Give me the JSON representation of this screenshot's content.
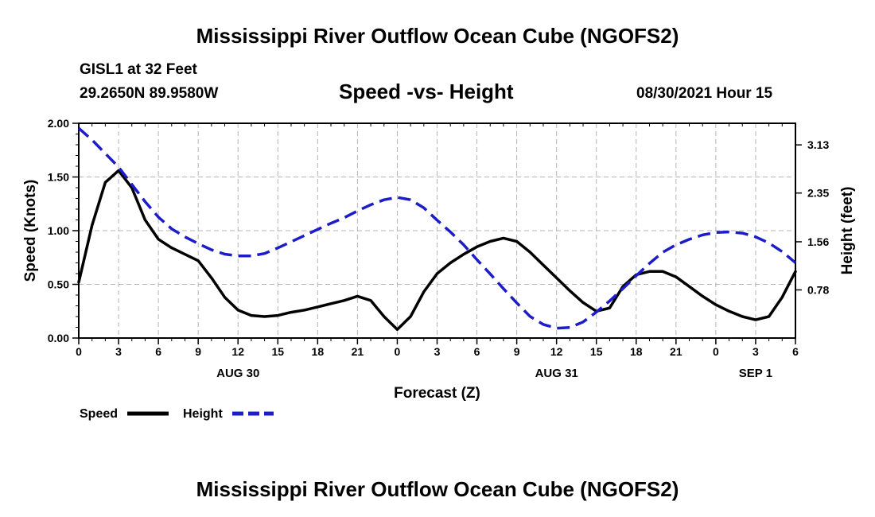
{
  "header": {
    "title": "Mississippi River Outflow Ocean Cube (NGOFS2)",
    "station": "GISL1 at 32 Feet",
    "coords": "29.2650N  89.9580W",
    "plot_title": "Speed -vs- Height",
    "timestamp": "08/30/2021 Hour 15"
  },
  "footer": {
    "title": "Mississippi River Outflow Ocean Cube (NGOFS2)"
  },
  "colors": {
    "speed": "#000000",
    "height": "#1c1cc8",
    "grid": "#b4b4b4"
  },
  "chart_data": {
    "type": "line",
    "title": "Speed -vs- Height",
    "xlabel": "Forecast (Z)",
    "ylabel": "Speed (Knots)",
    "y2label": "Height (feet)",
    "xlim": [
      0,
      54
    ],
    "ylim": [
      0,
      2.0
    ],
    "y2lim": [
      0,
      3.48
    ],
    "x_ticks": [
      0,
      3,
      6,
      9,
      12,
      15,
      18,
      21,
      24,
      27,
      30,
      33,
      36,
      39,
      42,
      45,
      48,
      51,
      54
    ],
    "x_tick_labels": [
      "0",
      "3",
      "6",
      "9",
      "12",
      "15",
      "18",
      "21",
      "0",
      "3",
      "6",
      "9",
      "12",
      "15",
      "18",
      "21",
      "0",
      "3",
      "6"
    ],
    "date_labels": [
      {
        "x": 12,
        "label": "AUG 30"
      },
      {
        "x": 36,
        "label": "AUG 31"
      },
      {
        "x": 51,
        "label": "SEP 1"
      }
    ],
    "y_ticks": [
      0,
      0.5,
      1.0,
      1.5,
      2.0
    ],
    "y_tick_labels": [
      "0.00",
      "0.50",
      "1.00",
      "1.50",
      "2.00"
    ],
    "y2_ticks": [
      0.78,
      1.56,
      2.35,
      3.13
    ],
    "y2_tick_labels": [
      "0.78",
      "1.56",
      "2.35",
      "3.13"
    ],
    "grid": true,
    "legend": [
      {
        "name": "Speed",
        "style": "solid"
      },
      {
        "name": "Height",
        "style": "dashed"
      }
    ],
    "series": [
      {
        "name": "Speed",
        "axis": "left",
        "x": [
          0,
          1,
          2,
          3,
          4,
          5,
          6,
          7,
          8,
          9,
          10,
          11,
          12,
          13,
          14,
          15,
          16,
          17,
          18,
          19,
          20,
          21,
          22,
          23,
          24,
          25,
          26,
          27,
          28,
          29,
          30,
          31,
          32,
          33,
          34,
          35,
          36,
          37,
          38,
          39,
          40,
          41,
          42,
          43,
          44,
          45,
          46,
          47,
          48,
          49,
          50,
          51,
          52,
          53,
          54
        ],
        "values": [
          0.52,
          1.05,
          1.45,
          1.56,
          1.4,
          1.1,
          0.92,
          0.84,
          0.78,
          0.72,
          0.56,
          0.38,
          0.26,
          0.21,
          0.2,
          0.21,
          0.24,
          0.26,
          0.29,
          0.32,
          0.35,
          0.39,
          0.35,
          0.2,
          0.08,
          0.2,
          0.43,
          0.6,
          0.7,
          0.78,
          0.85,
          0.9,
          0.93,
          0.9,
          0.8,
          0.68,
          0.56,
          0.44,
          0.33,
          0.25,
          0.28,
          0.48,
          0.59,
          0.62,
          0.62,
          0.57,
          0.48,
          0.39,
          0.31,
          0.25,
          0.2,
          0.17,
          0.2,
          0.38,
          0.62
        ]
      },
      {
        "name": "Height",
        "axis": "right",
        "x": [
          0,
          1,
          2,
          3,
          4,
          5,
          6,
          7,
          8,
          9,
          10,
          11,
          12,
          13,
          14,
          15,
          16,
          17,
          18,
          19,
          20,
          21,
          22,
          23,
          24,
          25,
          26,
          27,
          28,
          29,
          30,
          31,
          32,
          33,
          34,
          35,
          36,
          37,
          38,
          39,
          40,
          41,
          42,
          43,
          44,
          45,
          46,
          47,
          48,
          49,
          50,
          51,
          52,
          53,
          54
        ],
        "values": [
          3.4,
          3.21,
          2.99,
          2.77,
          2.49,
          2.21,
          1.96,
          1.77,
          1.64,
          1.53,
          1.43,
          1.36,
          1.33,
          1.33,
          1.37,
          1.46,
          1.56,
          1.66,
          1.76,
          1.86,
          1.95,
          2.06,
          2.16,
          2.24,
          2.28,
          2.24,
          2.11,
          1.91,
          1.72,
          1.51,
          1.27,
          1.04,
          0.8,
          0.57,
          0.35,
          0.22,
          0.16,
          0.17,
          0.26,
          0.42,
          0.6,
          0.8,
          1.01,
          1.21,
          1.39,
          1.51,
          1.6,
          1.67,
          1.71,
          1.72,
          1.7,
          1.64,
          1.54,
          1.4,
          1.22
        ]
      }
    ]
  }
}
